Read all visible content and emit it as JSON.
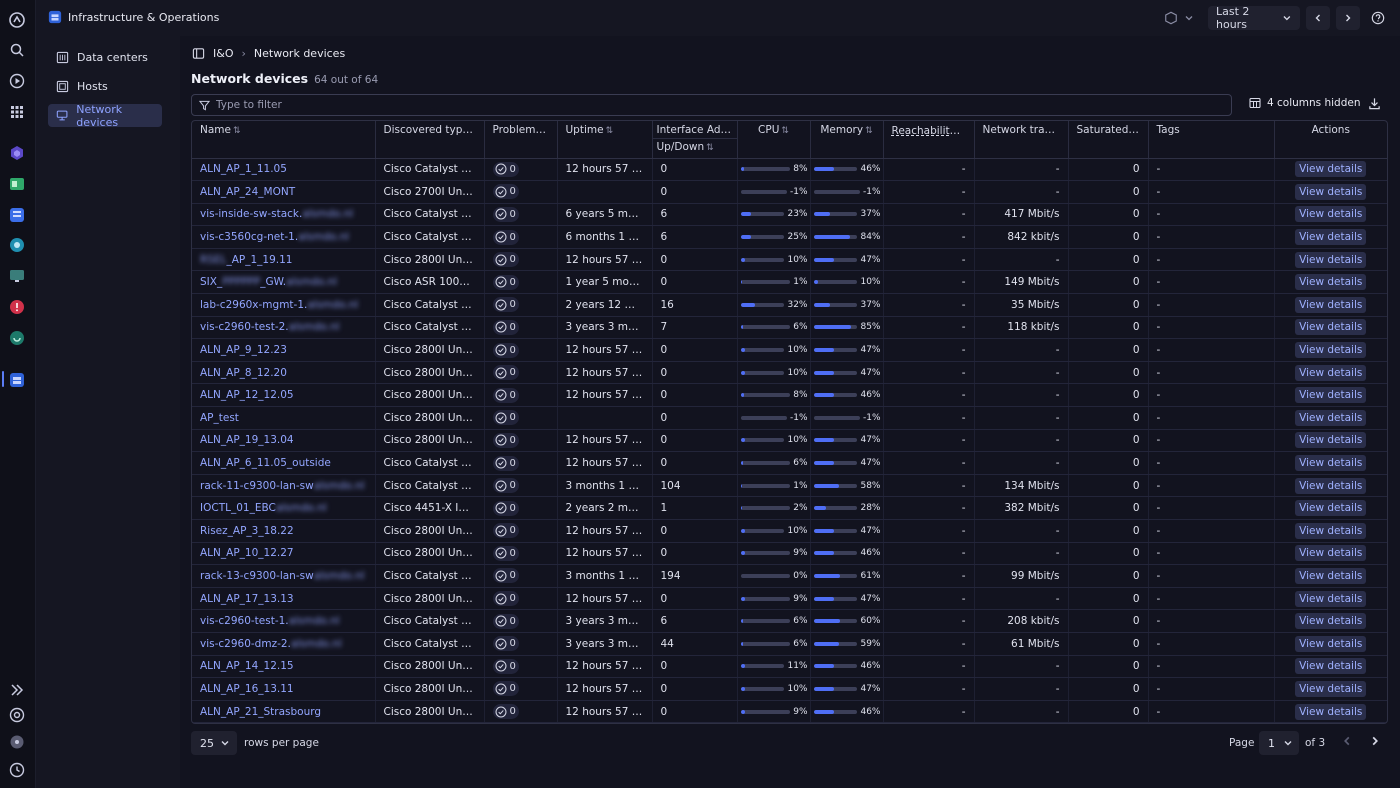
{
  "app": {
    "title": "Infrastructure & Operations"
  },
  "topbar": {
    "timeframe": "Last 2 hours"
  },
  "subnav": {
    "items": [
      {
        "label": "Data centers",
        "icon": "building-icon"
      },
      {
        "label": "Hosts",
        "icon": "host-icon"
      },
      {
        "label": "Network devices",
        "icon": "network-device-icon",
        "active": true
      }
    ]
  },
  "breadcrumb": {
    "root": "I&O",
    "current": "Network devices"
  },
  "page": {
    "title": "Network devices",
    "count": "64 out of 64"
  },
  "filter": {
    "placeholder": "Type to filter",
    "value": ""
  },
  "toolbar": {
    "hidden_columns": "4 columns hidden"
  },
  "table": {
    "headers": {
      "name": "Name",
      "type": "Discovered type",
      "problems": "Problems",
      "uptime": "Uptime",
      "iface_top": "Interface Admi...",
      "iface_bottom": "Up/Down",
      "cpu": "CPU",
      "memory": "Memory",
      "reach": "Reachability",
      "traffic": "Network traffic",
      "saturated": "Saturated...",
      "tags": "Tags",
      "actions": "Actions"
    },
    "action_label": "View details",
    "rows": [
      {
        "name": "ALN_AP_1_11.05",
        "type": "Cisco Catalyst Wirel...",
        "problems": "0",
        "uptime": "12 hours 57 min...",
        "iface": "0",
        "cpu": 8,
        "mem": 46,
        "reach": "-",
        "traffic": "-",
        "saturated": "0",
        "tags": "-"
      },
      {
        "name": "ALN_AP_24_MONT",
        "type": "Cisco 2700I Unified ...",
        "problems": "0",
        "uptime": "",
        "iface": "0",
        "cpu": -1,
        "mem": -1,
        "reach": "-",
        "traffic": "-",
        "saturated": "0",
        "tags": "-"
      },
      {
        "name": "vis-inside-sw-stack.",
        "blur": "alsmdo.nl",
        "type": "Cisco Catalyst 29xx ...",
        "problems": "0",
        "uptime": "6 years 5 months",
        "iface": "6",
        "cpu": 23,
        "mem": 37,
        "reach": "-",
        "traffic": "417 Mbit/s",
        "saturated": "0",
        "tags": "-"
      },
      {
        "name": "vis-c3560cg-net-1.",
        "blur": "alsmdo.nl",
        "type": "Cisco Catalyst 3560...",
        "problems": "0",
        "uptime": "6 months 1 week",
        "iface": "6",
        "cpu": 25,
        "mem": 84,
        "reach": "-",
        "traffic": "842 kbit/s",
        "saturated": "0",
        "tags": "-"
      },
      {
        "name": "",
        "blur": "RSEL",
        "name_suffix": "_AP_1_19.11",
        "type": "Cisco 2800I Unified ...",
        "problems": "0",
        "uptime": "12 hours 57 min...",
        "iface": "0",
        "cpu": 10,
        "mem": 47,
        "reach": "-",
        "traffic": "-",
        "saturated": "0",
        "tags": "-"
      },
      {
        "name": "SIX_",
        "blur": "PPPPPP",
        "name_suffix": "_GW.",
        "blur2": "alsmdo.nl",
        "type": "Cisco ASR 1001-X R...",
        "problems": "0",
        "uptime": "1 year 5 months",
        "iface": "0",
        "cpu": 1,
        "mem": 10,
        "reach": "-",
        "traffic": "149 Mbit/s",
        "saturated": "0",
        "tags": "-"
      },
      {
        "name": "lab-c2960x-mgmt-1.",
        "blur": "alsmdo.nl",
        "type": "Cisco Catalyst 29xx ...",
        "problems": "0",
        "uptime": "2 years 12 months",
        "iface": "16",
        "cpu": 32,
        "mem": 37,
        "reach": "-",
        "traffic": "35 Mbit/s",
        "saturated": "0",
        "tags": "-"
      },
      {
        "name": "vis-c2960-test-2.",
        "blur": "alsmdo.nl",
        "type": "Cisco Catalyst 2960...",
        "problems": "0",
        "uptime": "3 years 3 months",
        "iface": "7",
        "cpu": 6,
        "mem": 85,
        "reach": "-",
        "traffic": "118 kbit/s",
        "saturated": "0",
        "tags": "-"
      },
      {
        "name": "ALN_AP_9_12.23",
        "type": "Cisco 2800I Unified ...",
        "problems": "0",
        "uptime": "12 hours 57 min...",
        "iface": "0",
        "cpu": 10,
        "mem": 47,
        "reach": "-",
        "traffic": "-",
        "saturated": "0",
        "tags": "-"
      },
      {
        "name": "ALN_AP_8_12.20",
        "type": "Cisco 2800I Unified ...",
        "problems": "0",
        "uptime": "12 hours 57 min...",
        "iface": "0",
        "cpu": 10,
        "mem": 47,
        "reach": "-",
        "traffic": "-",
        "saturated": "0",
        "tags": "-"
      },
      {
        "name": "ALN_AP_12_12.05",
        "type": "Cisco 2800I Unified ...",
        "problems": "0",
        "uptime": "12 hours 57 min...",
        "iface": "0",
        "cpu": 8,
        "mem": 46,
        "reach": "-",
        "traffic": "-",
        "saturated": "0",
        "tags": "-"
      },
      {
        "name": "AP_test",
        "type": "Cisco 2800I Unified ...",
        "problems": "0",
        "uptime": "",
        "iface": "0",
        "cpu": -1,
        "mem": -1,
        "reach": "-",
        "traffic": "-",
        "saturated": "0",
        "tags": "-"
      },
      {
        "name": "ALN_AP_19_13.04",
        "type": "Cisco 2800I Unified ...",
        "problems": "0",
        "uptime": "12 hours 57 min...",
        "iface": "0",
        "cpu": 10,
        "mem": 47,
        "reach": "-",
        "traffic": "-",
        "saturated": "0",
        "tags": "-"
      },
      {
        "name": "ALN_AP_6_11.05_outside",
        "type": "Cisco Catalyst Wirel...",
        "problems": "0",
        "uptime": "12 hours 57 min...",
        "iface": "0",
        "cpu": 6,
        "mem": 47,
        "reach": "-",
        "traffic": "-",
        "saturated": "0",
        "tags": "-"
      },
      {
        "name": "rack-11-c9300-lan-sw",
        "blur": "alsmdo.nl",
        "type": "Cisco Catalyst 9300 ...",
        "problems": "0",
        "uptime": "3 months 1 week",
        "iface": "104",
        "cpu": 1,
        "mem": 58,
        "reach": "-",
        "traffic": "134 Mbit/s",
        "saturated": "0",
        "tags": "-"
      },
      {
        "name": "IOCTL_01_EBC",
        "blur": "alsmdo.nl",
        "type": "Cisco 4451-X Integr...",
        "problems": "0",
        "uptime": "2 years 2 months",
        "iface": "1",
        "cpu": 2,
        "mem": 28,
        "reach": "-",
        "traffic": "382 Mbit/s",
        "saturated": "0",
        "tags": "-"
      },
      {
        "name": "Risez_AP_3_18.22",
        "type": "Cisco 2800I Unified ...",
        "problems": "0",
        "uptime": "12 hours 57 min...",
        "iface": "0",
        "cpu": 10,
        "mem": 47,
        "reach": "-",
        "traffic": "-",
        "saturated": "0",
        "tags": "-"
      },
      {
        "name": "ALN_AP_10_12.27",
        "type": "Cisco 2800I Unified ...",
        "problems": "0",
        "uptime": "12 hours 57 min...",
        "iface": "0",
        "cpu": 9,
        "mem": 46,
        "reach": "-",
        "traffic": "-",
        "saturated": "0",
        "tags": "-"
      },
      {
        "name": "rack-13-c9300-lan-sw",
        "blur": "alsmdo.nl",
        "type": "Cisco Catalyst 9300 ...",
        "problems": "0",
        "uptime": "3 months 1 week",
        "iface": "194",
        "cpu": 0,
        "mem": 61,
        "reach": "-",
        "traffic": "99 Mbit/s",
        "saturated": "0",
        "tags": "-"
      },
      {
        "name": "ALN_AP_17_13.13",
        "type": "Cisco 2800I Unified ...",
        "problems": "0",
        "uptime": "12 hours 57 min...",
        "iface": "0",
        "cpu": 9,
        "mem": 47,
        "reach": "-",
        "traffic": "-",
        "saturated": "0",
        "tags": "-"
      },
      {
        "name": "vis-c2960-test-1.",
        "blur": "alsmdo.nl",
        "type": "Cisco Catalyst 2960...",
        "problems": "0",
        "uptime": "3 years 3 months",
        "iface": "6",
        "cpu": 6,
        "mem": 60,
        "reach": "-",
        "traffic": "208 kbit/s",
        "saturated": "0",
        "tags": "-"
      },
      {
        "name": "vis-c2960-dmz-2.",
        "blur": "alsmdo.nl",
        "type": "Cisco Catalyst 2960...",
        "problems": "0",
        "uptime": "3 years 3 months",
        "iface": "44",
        "cpu": 6,
        "mem": 59,
        "reach": "-",
        "traffic": "61 Mbit/s",
        "saturated": "0",
        "tags": "-"
      },
      {
        "name": "ALN_AP_14_12.15",
        "type": "Cisco 2800I Unified ...",
        "problems": "0",
        "uptime": "12 hours 57 min...",
        "iface": "0",
        "cpu": 11,
        "mem": 46,
        "reach": "-",
        "traffic": "-",
        "saturated": "0",
        "tags": "-"
      },
      {
        "name": "ALN_AP_16_13.11",
        "type": "Cisco 2800I Unified ...",
        "problems": "0",
        "uptime": "12 hours 57 min...",
        "iface": "0",
        "cpu": 10,
        "mem": 47,
        "reach": "-",
        "traffic": "-",
        "saturated": "0",
        "tags": "-"
      },
      {
        "name": "ALN_AP_21_Strasbourg",
        "type": "Cisco 2800I Unified ...",
        "problems": "0",
        "uptime": "12 hours 57 min...",
        "iface": "0",
        "cpu": 9,
        "mem": 46,
        "reach": "-",
        "traffic": "-",
        "saturated": "0",
        "tags": "-"
      }
    ]
  },
  "pagination": {
    "rows_per_page": "25",
    "rows_per_page_label": "rows per page",
    "page_label": "Page",
    "page": "1",
    "of_label": "of 3"
  },
  "colors": {
    "accent": "#4f6ef5",
    "link": "#93a6ff",
    "background": "#12131f"
  }
}
